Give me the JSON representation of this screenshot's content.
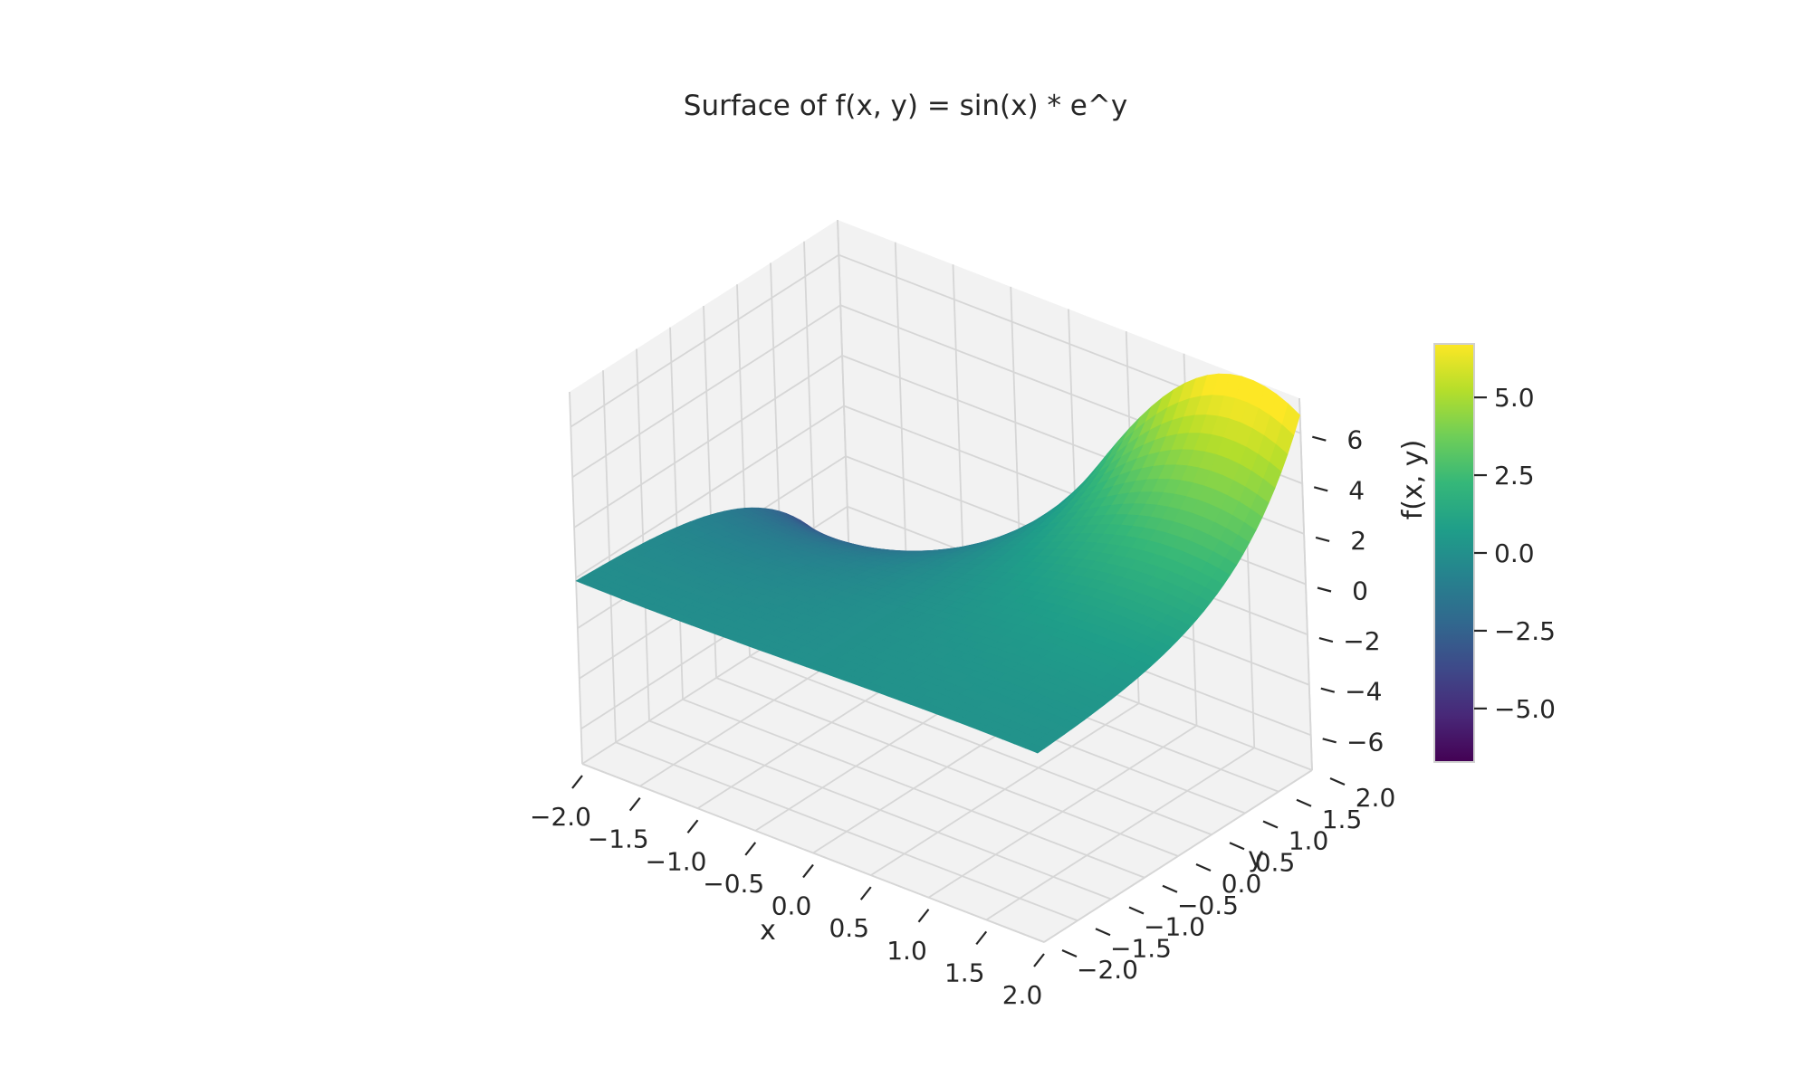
{
  "chart_data": {
    "type": "surface",
    "title": "Surface of f(x, y) = sin(x) * e^y",
    "function": "sin(x) * e^y",
    "xlabel": "x",
    "ylabel": "y",
    "zlabel": "",
    "xlim": [
      -2.0,
      2.0
    ],
    "ylim": [
      -2.0,
      2.0
    ],
    "zlim": [
      -7.39,
      7.39
    ],
    "x_ticks": [
      "−2.0",
      "−1.5",
      "−1.0",
      "−0.5",
      "0.0",
      "0.5",
      "1.0",
      "1.5",
      "2.0"
    ],
    "y_ticks": [
      "−2.0",
      "−1.5",
      "−1.0",
      "−0.5",
      "0.0",
      "0.5",
      "1.0",
      "1.5",
      "2.0"
    ],
    "z_ticks": [
      "−6",
      "−4",
      "−2",
      "0",
      "2",
      "4",
      "6"
    ],
    "grid": true,
    "colormap": "viridis",
    "colorbar": {
      "label": "f(x, y)",
      "ticks": [
        "−5.0",
        "−2.5",
        "0.0",
        "2.5",
        "5.0"
      ],
      "range": [
        -6.72,
        6.72
      ]
    },
    "resolution": 40
  },
  "colors": {
    "pane": "#f2f2f2",
    "grid": "#d6d6d6",
    "text": "#262626"
  }
}
